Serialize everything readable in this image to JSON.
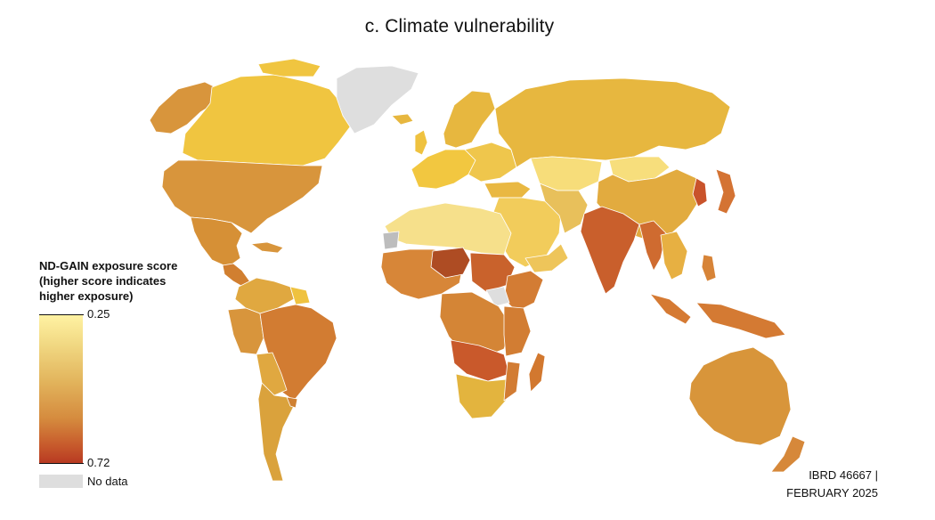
{
  "title": "c. Climate vulnerability",
  "legend": {
    "title_lines": [
      "ND-GAIN exposure score",
      "(higher score indicates",
      "higher exposure)"
    ],
    "min_label": "0.25",
    "max_label": "0.72",
    "no_data_label": "No data",
    "gradient_colors": [
      "#fff2a3",
      "#e2b45c",
      "#d58b3e",
      "#c75a2c",
      "#b83a22"
    ],
    "no_data_color": "#dedede"
  },
  "credit": {
    "line1": "IBRD 46667  |",
    "line2": "FEBRUARY 2025"
  }
}
